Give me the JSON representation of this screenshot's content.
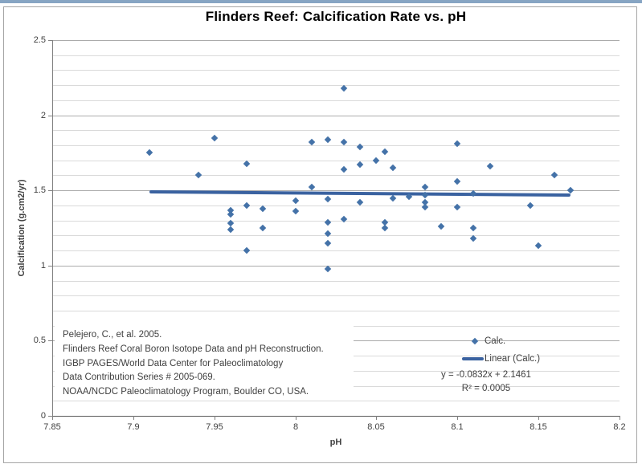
{
  "top_strip_color": "#87a5c3",
  "colors": {
    "marker_blue": "#4472a8",
    "trendline_blue": "#3a62a0",
    "grid_minor": "#dadada",
    "grid_major": "#ababab",
    "axis_gray": "#808080",
    "text_dark": "#404040",
    "frame_border": "#a6a6a6"
  },
  "chart_data": {
    "type": "scatter",
    "title": "Flinders Reef: Calcification Rate vs. pH",
    "xlabel": "pH",
    "ylabel": "Calcification (g.cm2/yr)",
    "xlim": [
      7.85,
      8.2
    ],
    "ylim": [
      0,
      2.5
    ],
    "xticks": [
      7.85,
      7.9,
      7.95,
      8,
      8.05,
      8.1,
      8.15,
      8.2
    ],
    "xtick_labels": [
      "7.85",
      "7.9",
      "7.95",
      "8",
      "8.05",
      "8.1",
      "8.15",
      "8.2"
    ],
    "yticks": [
      0,
      0.5,
      1,
      1.5,
      2,
      2.5
    ],
    "ytick_labels": [
      "0",
      "0.5",
      "1",
      "1.5",
      "2",
      "2.5"
    ],
    "grid": "horizontal, minor every 0.1, major every 0.5",
    "legend_position": "lower right, transparent",
    "series": [
      {
        "name": "Calc.",
        "marker": "diamond",
        "points": [
          [
            7.91,
            1.75
          ],
          [
            7.94,
            1.6
          ],
          [
            7.95,
            1.85
          ],
          [
            7.97,
            1.68
          ],
          [
            8.03,
            2.18
          ],
          [
            8.01,
            1.82
          ],
          [
            8.02,
            1.84
          ],
          [
            8.03,
            1.82
          ],
          [
            8.04,
            1.79
          ],
          [
            8.055,
            1.76
          ],
          [
            8.05,
            1.7
          ],
          [
            8.04,
            1.67
          ],
          [
            8.03,
            1.64
          ],
          [
            8.06,
            1.65
          ],
          [
            8.1,
            1.81
          ],
          [
            8.12,
            1.66
          ],
          [
            8.16,
            1.6
          ],
          [
            8.1,
            1.56
          ],
          [
            7.96,
            1.37
          ],
          [
            7.97,
            1.4
          ],
          [
            7.98,
            1.38
          ],
          [
            7.96,
            1.34
          ],
          [
            7.96,
            1.28
          ],
          [
            7.96,
            1.24
          ],
          [
            7.98,
            1.25
          ],
          [
            7.97,
            1.1
          ],
          [
            8.01,
            1.52
          ],
          [
            8.08,
            1.52
          ],
          [
            8.0,
            1.43
          ],
          [
            8.02,
            1.44
          ],
          [
            8.04,
            1.42
          ],
          [
            8.06,
            1.45
          ],
          [
            8.07,
            1.46
          ],
          [
            8.08,
            1.47
          ],
          [
            8.08,
            1.42
          ],
          [
            8.08,
            1.39
          ],
          [
            8.0,
            1.36
          ],
          [
            8.02,
            1.29
          ],
          [
            8.03,
            1.31
          ],
          [
            8.055,
            1.29
          ],
          [
            8.055,
            1.25
          ],
          [
            8.02,
            1.21
          ],
          [
            8.02,
            1.15
          ],
          [
            8.02,
            0.98
          ],
          [
            8.11,
            1.48
          ],
          [
            8.1,
            1.39
          ],
          [
            8.145,
            1.4
          ],
          [
            8.09,
            1.26
          ],
          [
            8.11,
            1.25
          ],
          [
            8.11,
            1.18
          ],
          [
            8.15,
            1.13
          ],
          [
            8.17,
            1.5
          ]
        ]
      }
    ],
    "trendline": {
      "name": "Linear (Calc.)",
      "slope": -0.0832,
      "intercept": 2.1461,
      "x_start": 7.91,
      "x_end": 8.17,
      "equation": "y = -0.0832x  + 2.1461",
      "r_squared": "R² = 0.0005"
    }
  },
  "legend": {
    "calc_label": "Calc.",
    "linear_label": "Linear (Calc.)",
    "equation": "y = -0.0832x  + 2.1461",
    "r2": "R² = 0.0005"
  },
  "citation": {
    "lines": [
      "Pelejero, C., et al.  2005.",
      "Flinders Reef Coral Boron Isotope  Data and pH Reconstruction.",
      "IGBP PAGES/World  Data Center for Paleoclimatology",
      "Data Contribution  Series # 2005-069.",
      "NOAA/NCDC Paleoclimatology  Program, Boulder CO, USA."
    ]
  }
}
